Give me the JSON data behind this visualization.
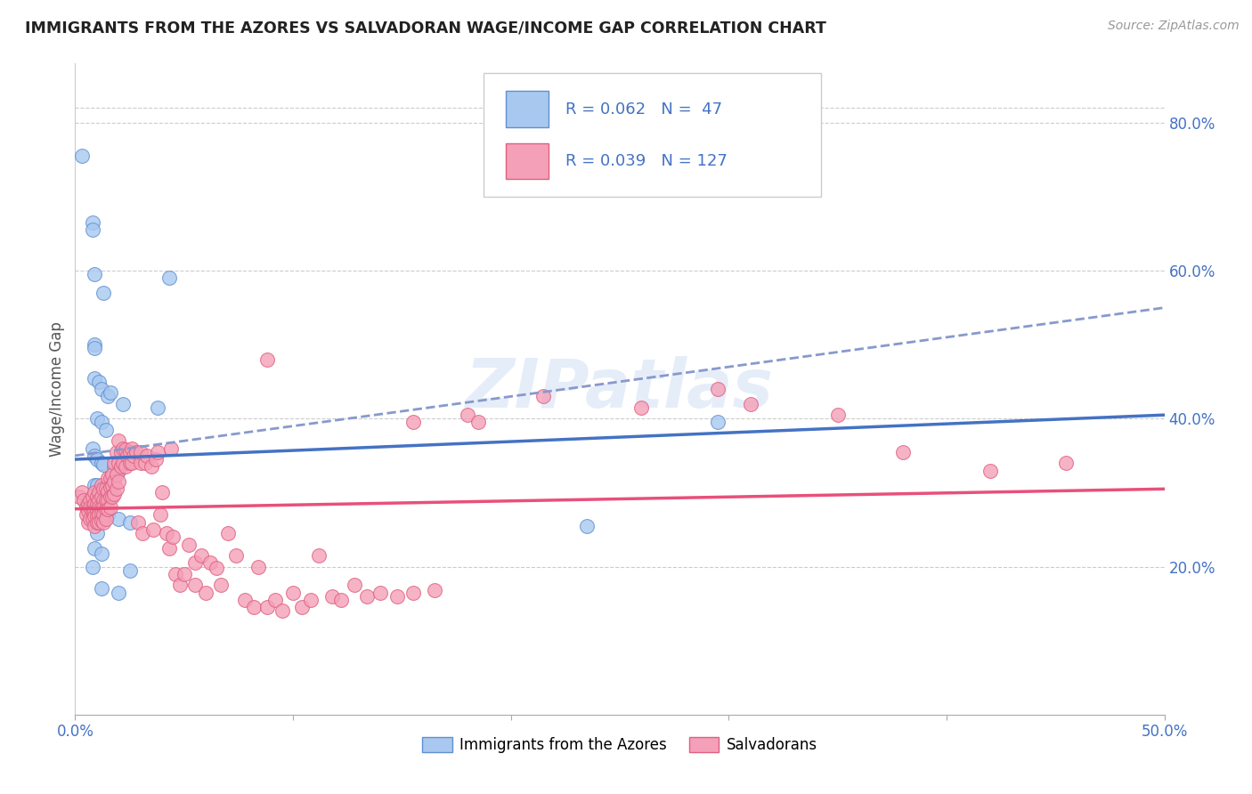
{
  "title": "IMMIGRANTS FROM THE AZORES VS SALVADORAN WAGE/INCOME GAP CORRELATION CHART",
  "source": "Source: ZipAtlas.com",
  "ylabel": "Wage/Income Gap",
  "yticks": [
    "20.0%",
    "40.0%",
    "60.0%",
    "80.0%"
  ],
  "ytick_vals": [
    0.2,
    0.4,
    0.6,
    0.8
  ],
  "xlim": [
    0.0,
    0.5
  ],
  "ylim": [
    0.0,
    0.88
  ],
  "azores_color": "#a8c8f0",
  "azores_edge_color": "#6090d0",
  "salvadoran_color": "#f4a0b8",
  "salvadoran_edge_color": "#e06080",
  "azores_line_color": "#4472c4",
  "salvadoran_line_color": "#e8507a",
  "dashed_line_color": "#8899cc",
  "watermark": "ZIPatlas",
  "azores_label": "Immigrants from the Azores",
  "salvadoran_label": "Salvadorans",
  "azores_points": [
    [
      0.003,
      0.755
    ],
    [
      0.008,
      0.665
    ],
    [
      0.008,
      0.655
    ],
    [
      0.009,
      0.595
    ],
    [
      0.013,
      0.57
    ],
    [
      0.009,
      0.5
    ],
    [
      0.009,
      0.495
    ],
    [
      0.009,
      0.455
    ],
    [
      0.011,
      0.45
    ],
    [
      0.012,
      0.44
    ],
    [
      0.015,
      0.43
    ],
    [
      0.016,
      0.435
    ],
    [
      0.022,
      0.42
    ],
    [
      0.038,
      0.415
    ],
    [
      0.01,
      0.4
    ],
    [
      0.012,
      0.395
    ],
    [
      0.014,
      0.385
    ],
    [
      0.008,
      0.36
    ],
    [
      0.009,
      0.35
    ],
    [
      0.01,
      0.345
    ],
    [
      0.012,
      0.34
    ],
    [
      0.013,
      0.338
    ],
    [
      0.018,
      0.335
    ],
    [
      0.02,
      0.33
    ],
    [
      0.009,
      0.31
    ],
    [
      0.01,
      0.31
    ],
    [
      0.012,
      0.305
    ],
    [
      0.013,
      0.3
    ],
    [
      0.01,
      0.295
    ],
    [
      0.011,
      0.29
    ],
    [
      0.005,
      0.285
    ],
    [
      0.007,
      0.28
    ],
    [
      0.009,
      0.278
    ],
    [
      0.01,
      0.275
    ],
    [
      0.015,
      0.27
    ],
    [
      0.02,
      0.265
    ],
    [
      0.025,
      0.26
    ],
    [
      0.01,
      0.245
    ],
    [
      0.009,
      0.225
    ],
    [
      0.012,
      0.218
    ],
    [
      0.008,
      0.2
    ],
    [
      0.025,
      0.195
    ],
    [
      0.012,
      0.17
    ],
    [
      0.02,
      0.165
    ],
    [
      0.043,
      0.59
    ],
    [
      0.295,
      0.395
    ],
    [
      0.235,
      0.255
    ]
  ],
  "salvadoran_points": [
    [
      0.002,
      0.295
    ],
    [
      0.003,
      0.3
    ],
    [
      0.004,
      0.29
    ],
    [
      0.005,
      0.28
    ],
    [
      0.005,
      0.27
    ],
    [
      0.006,
      0.285
    ],
    [
      0.006,
      0.275
    ],
    [
      0.006,
      0.26
    ],
    [
      0.007,
      0.29
    ],
    [
      0.007,
      0.28
    ],
    [
      0.007,
      0.265
    ],
    [
      0.008,
      0.295
    ],
    [
      0.008,
      0.28
    ],
    [
      0.008,
      0.275
    ],
    [
      0.008,
      0.265
    ],
    [
      0.009,
      0.3
    ],
    [
      0.009,
      0.285
    ],
    [
      0.009,
      0.275
    ],
    [
      0.009,
      0.268
    ],
    [
      0.009,
      0.255
    ],
    [
      0.01,
      0.295
    ],
    [
      0.01,
      0.285
    ],
    [
      0.01,
      0.275
    ],
    [
      0.01,
      0.268
    ],
    [
      0.01,
      0.26
    ],
    [
      0.011,
      0.3
    ],
    [
      0.011,
      0.29
    ],
    [
      0.011,
      0.28
    ],
    [
      0.011,
      0.27
    ],
    [
      0.011,
      0.26
    ],
    [
      0.012,
      0.31
    ],
    [
      0.012,
      0.295
    ],
    [
      0.012,
      0.28
    ],
    [
      0.012,
      0.272
    ],
    [
      0.012,
      0.262
    ],
    [
      0.013,
      0.305
    ],
    [
      0.013,
      0.29
    ],
    [
      0.013,
      0.28
    ],
    [
      0.013,
      0.27
    ],
    [
      0.013,
      0.26
    ],
    [
      0.014,
      0.305
    ],
    [
      0.014,
      0.29
    ],
    [
      0.014,
      0.278
    ],
    [
      0.014,
      0.265
    ],
    [
      0.015,
      0.32
    ],
    [
      0.015,
      0.302
    ],
    [
      0.015,
      0.29
    ],
    [
      0.015,
      0.278
    ],
    [
      0.016,
      0.32
    ],
    [
      0.016,
      0.308
    ],
    [
      0.016,
      0.295
    ],
    [
      0.016,
      0.28
    ],
    [
      0.017,
      0.325
    ],
    [
      0.017,
      0.31
    ],
    [
      0.017,
      0.295
    ],
    [
      0.018,
      0.34
    ],
    [
      0.018,
      0.315
    ],
    [
      0.018,
      0.298
    ],
    [
      0.019,
      0.355
    ],
    [
      0.019,
      0.325
    ],
    [
      0.019,
      0.305
    ],
    [
      0.02,
      0.37
    ],
    [
      0.02,
      0.34
    ],
    [
      0.02,
      0.315
    ],
    [
      0.021,
      0.355
    ],
    [
      0.021,
      0.335
    ],
    [
      0.022,
      0.36
    ],
    [
      0.022,
      0.34
    ],
    [
      0.023,
      0.358
    ],
    [
      0.023,
      0.335
    ],
    [
      0.024,
      0.35
    ],
    [
      0.025,
      0.355
    ],
    [
      0.025,
      0.34
    ],
    [
      0.026,
      0.36
    ],
    [
      0.026,
      0.34
    ],
    [
      0.027,
      0.35
    ],
    [
      0.028,
      0.355
    ],
    [
      0.029,
      0.26
    ],
    [
      0.03,
      0.34
    ],
    [
      0.03,
      0.355
    ],
    [
      0.031,
      0.245
    ],
    [
      0.032,
      0.34
    ],
    [
      0.033,
      0.35
    ],
    [
      0.035,
      0.335
    ],
    [
      0.036,
      0.25
    ],
    [
      0.037,
      0.345
    ],
    [
      0.038,
      0.355
    ],
    [
      0.039,
      0.27
    ],
    [
      0.04,
      0.3
    ],
    [
      0.042,
      0.245
    ],
    [
      0.043,
      0.225
    ],
    [
      0.044,
      0.36
    ],
    [
      0.045,
      0.24
    ],
    [
      0.046,
      0.19
    ],
    [
      0.048,
      0.175
    ],
    [
      0.05,
      0.19
    ],
    [
      0.052,
      0.23
    ],
    [
      0.055,
      0.205
    ],
    [
      0.055,
      0.175
    ],
    [
      0.058,
      0.215
    ],
    [
      0.06,
      0.165
    ],
    [
      0.062,
      0.205
    ],
    [
      0.065,
      0.198
    ],
    [
      0.067,
      0.175
    ],
    [
      0.07,
      0.245
    ],
    [
      0.074,
      0.215
    ],
    [
      0.078,
      0.155
    ],
    [
      0.082,
      0.145
    ],
    [
      0.084,
      0.2
    ],
    [
      0.088,
      0.145
    ],
    [
      0.092,
      0.155
    ],
    [
      0.095,
      0.14
    ],
    [
      0.1,
      0.165
    ],
    [
      0.104,
      0.145
    ],
    [
      0.108,
      0.155
    ],
    [
      0.112,
      0.215
    ],
    [
      0.118,
      0.16
    ],
    [
      0.122,
      0.155
    ],
    [
      0.128,
      0.175
    ],
    [
      0.134,
      0.16
    ],
    [
      0.14,
      0.165
    ],
    [
      0.148,
      0.16
    ],
    [
      0.155,
      0.165
    ],
    [
      0.165,
      0.168
    ],
    [
      0.088,
      0.48
    ],
    [
      0.155,
      0.395
    ],
    [
      0.18,
      0.405
    ],
    [
      0.185,
      0.395
    ],
    [
      0.215,
      0.43
    ],
    [
      0.26,
      0.415
    ],
    [
      0.295,
      0.44
    ],
    [
      0.31,
      0.42
    ],
    [
      0.35,
      0.405
    ],
    [
      0.38,
      0.355
    ],
    [
      0.42,
      0.33
    ],
    [
      0.455,
      0.34
    ]
  ],
  "azores_trend_x": [
    0.0,
    0.5
  ],
  "azores_trend_y": [
    0.345,
    0.405
  ],
  "salvadoran_trend_x": [
    0.0,
    0.5
  ],
  "salvadoran_trend_y": [
    0.278,
    0.305
  ],
  "dashed_trend_x": [
    0.0,
    0.5
  ],
  "dashed_trend_y": [
    0.35,
    0.55
  ]
}
